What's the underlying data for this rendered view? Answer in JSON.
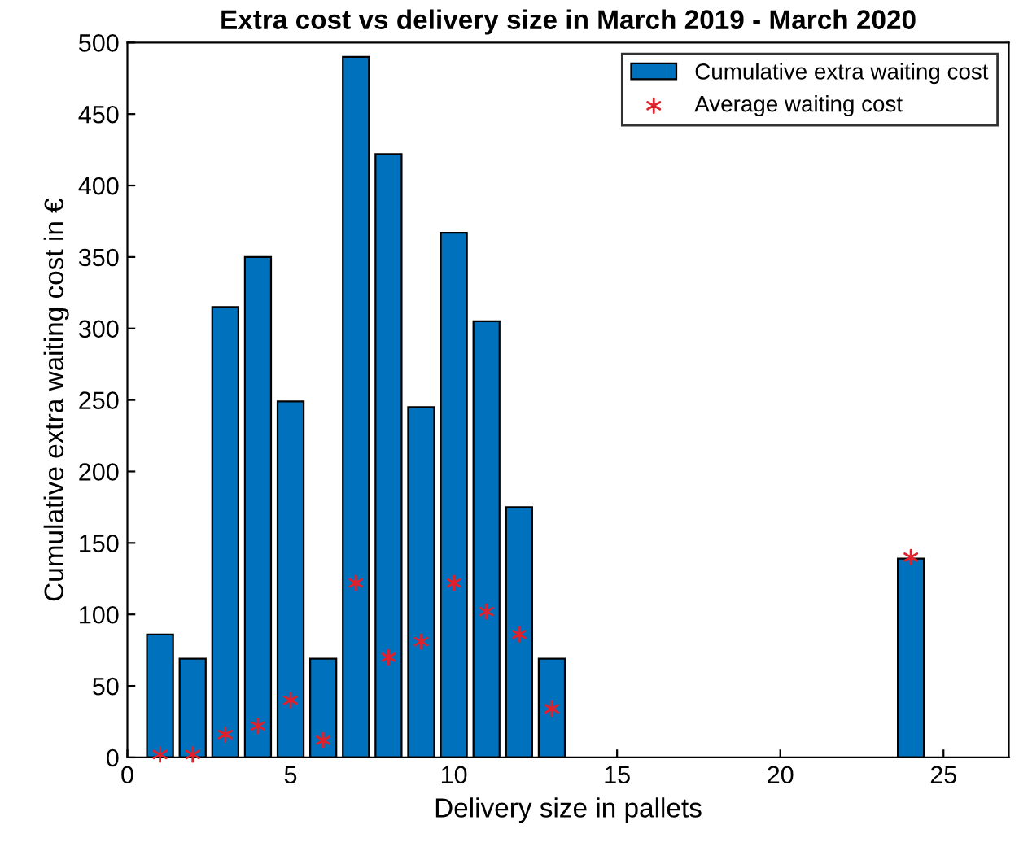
{
  "chart_data": {
    "type": "bar",
    "title": "Extra cost vs delivery size in March 2019 - March 2020",
    "xlabel": "Delivery size in pallets",
    "ylabel": "Cumulative extra waiting cost in €",
    "x": [
      1,
      2,
      3,
      4,
      5,
      6,
      7,
      8,
      9,
      10,
      11,
      12,
      13,
      24
    ],
    "series": [
      {
        "name": "Cumulative extra waiting cost",
        "color": "#0072bd",
        "values": [
          86,
          69,
          315,
          350,
          249,
          69,
          490,
          422,
          245,
          367,
          305,
          175,
          69,
          139
        ]
      },
      {
        "name": "Average waiting cost",
        "type": "scatter",
        "color": "#e0202a",
        "marker": "cross",
        "values": [
          2,
          2,
          16,
          22,
          40,
          12,
          122,
          70,
          81,
          122,
          102,
          86,
          34,
          140
        ]
      }
    ],
    "xlim": [
      0,
      27
    ],
    "xticks": [
      0,
      5,
      10,
      15,
      20,
      25
    ],
    "ylim": [
      0,
      500
    ],
    "yticks": [
      0,
      50,
      100,
      150,
      200,
      250,
      300,
      350,
      400,
      450,
      500
    ],
    "grid": false,
    "legend": "top right"
  }
}
